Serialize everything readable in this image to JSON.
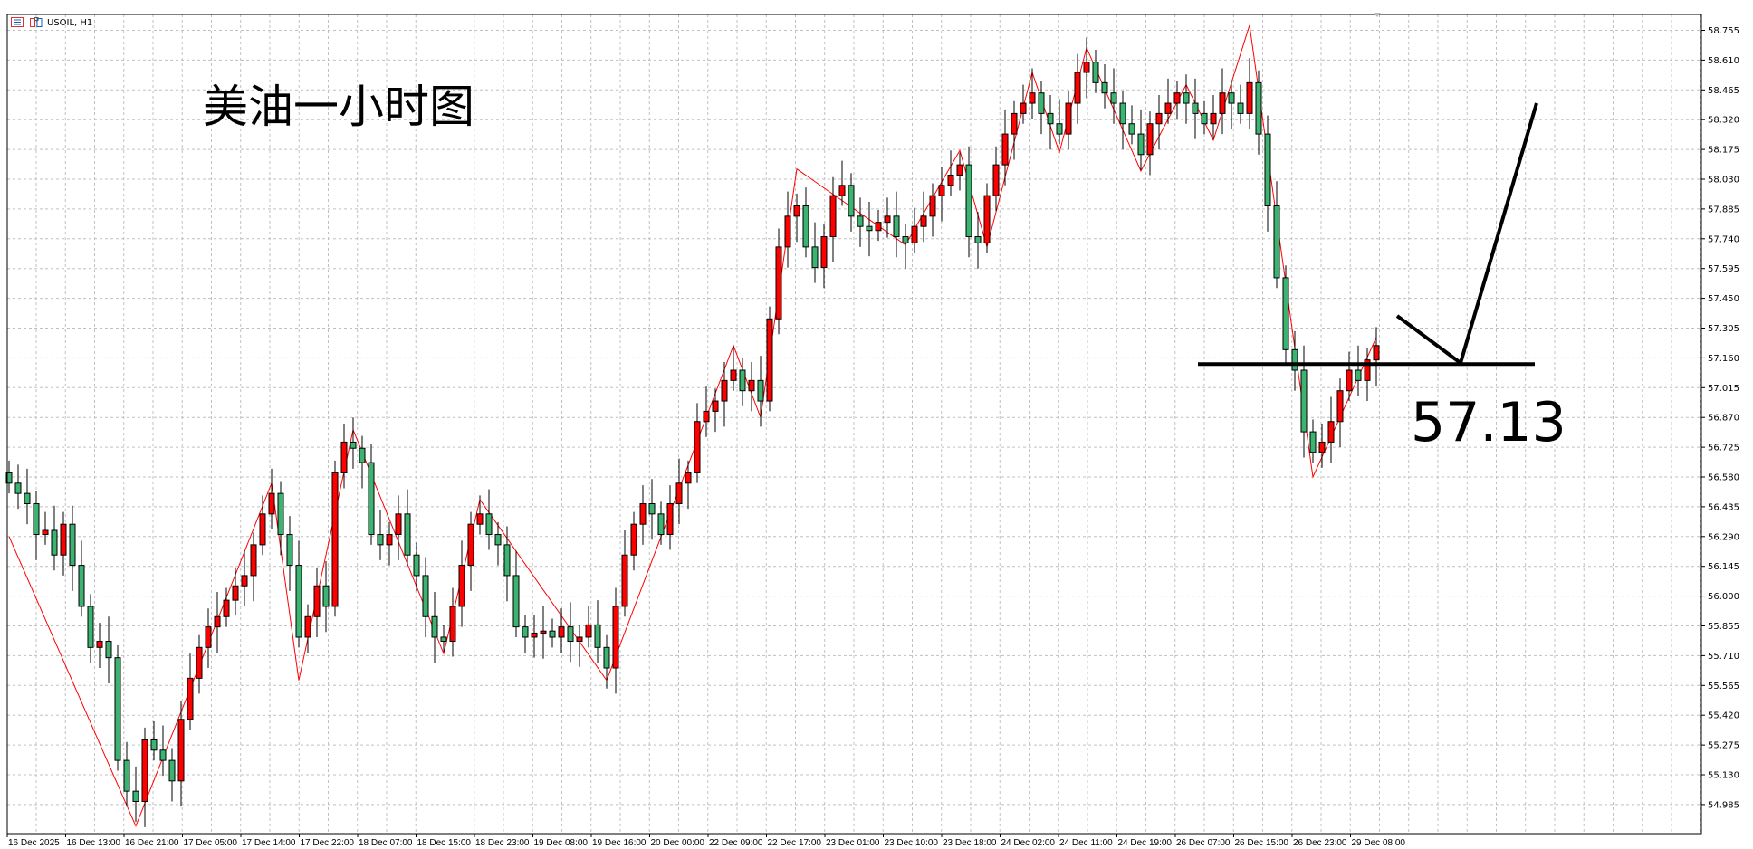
{
  "header": {
    "symbol": "USOIL, H1",
    "icons": [
      "trade-list-icon",
      "one-click-trading-icon"
    ]
  },
  "annotations": {
    "title": "美油一小时图",
    "level_label": "57.13",
    "level": 57.13
  },
  "colors": {
    "bull": "#ff0000",
    "bear": "#3cb371",
    "zigzag": "#ff0000",
    "outline": "#000000",
    "grid": "#c0c0c0"
  },
  "chart_data": {
    "type": "candlestick",
    "title": "",
    "grid": true,
    "ylim": [
      54.88,
      58.8
    ],
    "y_ticks": [
      "58.755",
      "58.610",
      "58.465",
      "58.320",
      "58.175",
      "58.030",
      "57.885",
      "57.740",
      "57.595",
      "57.450",
      "57.305",
      "57.160",
      "57.015",
      "56.870",
      "56.725",
      "56.580",
      "56.435",
      "56.290",
      "56.145",
      "56.000",
      "55.855",
      "55.710",
      "55.565",
      "55.420",
      "55.275",
      "55.130",
      "54.985"
    ],
    "x_ticks": [
      "16 Dec 2025",
      "16 Dec 13:00",
      "16 Dec 21:00",
      "17 Dec 05:00",
      "17 Dec 14:00",
      "17 Dec 22:00",
      "18 Dec 07:00",
      "18 Dec 15:00",
      "18 Dec 23:00",
      "19 Dec 08:00",
      "19 Dec 16:00",
      "20 Dec 00:00",
      "22 Dec 09:00",
      "22 Dec 17:00",
      "23 Dec 01:00",
      "23 Dec 10:00",
      "23 Dec 18:00",
      "24 Dec 02:00",
      "24 Dec 11:00",
      "24 Dec 19:00",
      "26 Dec 07:00",
      "26 Dec 15:00",
      "26 Dec 23:00",
      "29 Dec 08:00"
    ],
    "closes": [
      56.55,
      56.5,
      56.45,
      56.3,
      56.32,
      56.2,
      56.35,
      56.15,
      55.95,
      55.75,
      55.78,
      55.7,
      55.2,
      55.05,
      55.0,
      55.3,
      55.25,
      55.2,
      55.1,
      55.4,
      55.6,
      55.75,
      55.85,
      55.9,
      55.98,
      56.05,
      56.1,
      56.25,
      56.4,
      56.5,
      56.3,
      56.15,
      55.8,
      55.9,
      56.05,
      55.95,
      56.6,
      56.75,
      56.72,
      56.65,
      56.3,
      56.25,
      56.3,
      56.4,
      56.2,
      56.1,
      55.9,
      55.8,
      55.78,
      55.95,
      56.15,
      56.35,
      56.4,
      56.3,
      56.25,
      56.1,
      55.85,
      55.8,
      55.82,
      55.83,
      55.8,
      55.85,
      55.78,
      55.8,
      55.86,
      55.75,
      55.65,
      55.95,
      56.2,
      56.35,
      56.45,
      56.4,
      56.3,
      56.45,
      56.55,
      56.6,
      56.85,
      56.9,
      56.95,
      57.05,
      57.1,
      57.0,
      57.05,
      56.95,
      57.35,
      57.7,
      57.85,
      57.9,
      57.7,
      57.6,
      57.75,
      57.95,
      58.0,
      57.85,
      57.8,
      57.78,
      57.82,
      57.85,
      57.75,
      57.72,
      57.8,
      57.85,
      57.95,
      58.0,
      58.05,
      58.1,
      57.75,
      57.72,
      57.95,
      58.1,
      58.25,
      58.35,
      58.4,
      58.45,
      58.35,
      58.3,
      58.25,
      58.4,
      58.55,
      58.6,
      58.5,
      58.45,
      58.4,
      58.3,
      58.25,
      58.15,
      58.3,
      58.35,
      58.4,
      58.45,
      58.4,
      58.35,
      58.3,
      58.35,
      58.45,
      58.4,
      58.35,
      58.5,
      58.25,
      57.9,
      57.55,
      57.2,
      57.1,
      56.8,
      56.7,
      56.75,
      56.85,
      57.0,
      57.1,
      57.05,
      57.15,
      57.22
    ],
    "zigzag": [
      [
        0,
        56.29
      ],
      [
        14,
        54.88
      ],
      [
        29,
        56.55
      ],
      [
        32,
        55.59
      ],
      [
        38,
        56.81
      ],
      [
        48,
        55.72
      ],
      [
        52,
        56.47
      ],
      [
        66,
        55.59
      ],
      [
        80,
        57.22
      ],
      [
        83,
        56.87
      ],
      [
        87,
        58.08
      ],
      [
        99,
        57.71
      ],
      [
        105,
        58.17
      ],
      [
        108,
        57.7
      ],
      [
        113,
        58.55
      ],
      [
        116,
        58.16
      ],
      [
        119,
        58.67
      ],
      [
        125,
        58.07
      ],
      [
        130,
        58.49
      ],
      [
        133,
        58.22
      ],
      [
        137,
        58.78
      ],
      [
        144,
        56.58
      ],
      [
        151,
        57.26
      ]
    ]
  }
}
